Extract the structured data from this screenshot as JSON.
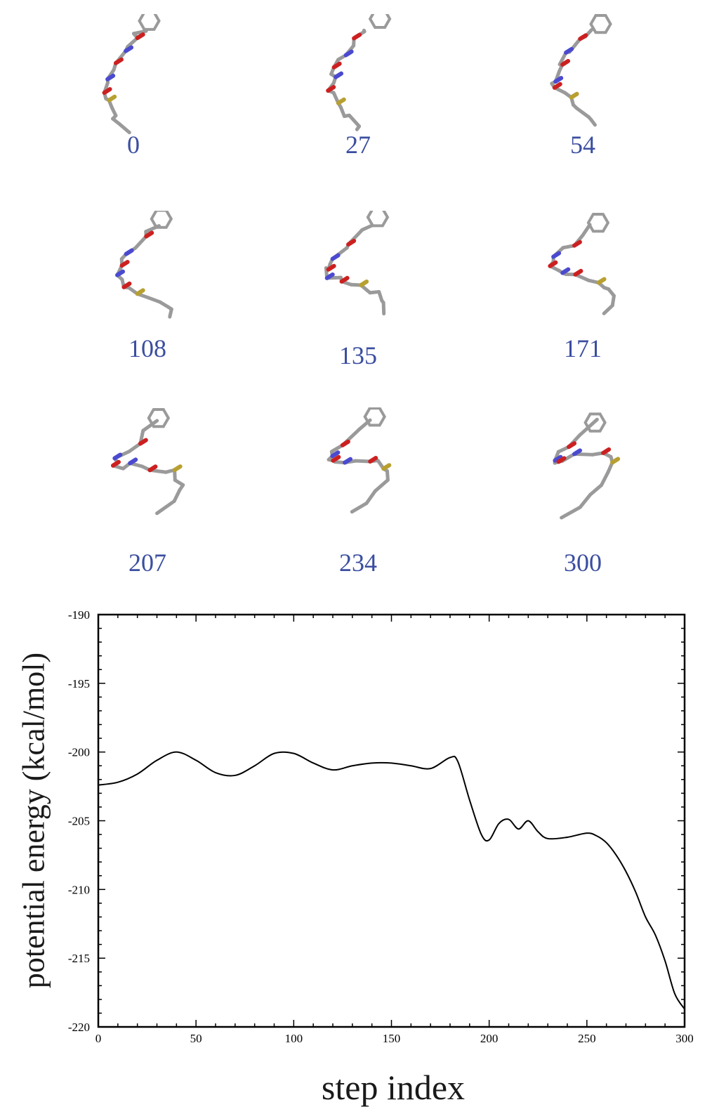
{
  "snapshots": {
    "labels": [
      "0",
      "27",
      "54",
      "108",
      "135",
      "171",
      "207",
      "234",
      "300"
    ],
    "colors": {
      "label": "#3b4ea0",
      "carbon": "#9a9a9a",
      "oxygen": "#cc2020",
      "nitrogen": "#4a4ad0",
      "sulfur": "#b8a030",
      "hydrogen": "#e8e8e8"
    }
  },
  "chart_data": {
    "type": "line",
    "xlabel": "step index",
    "ylabel": "potential energy (kcal/mol)",
    "xlim": [
      0,
      300
    ],
    "ylim": [
      -220,
      -190
    ],
    "x_ticks": [
      0,
      50,
      100,
      150,
      200,
      250,
      300
    ],
    "y_ticks": [
      -220,
      -215,
      -210,
      -205,
      -200,
      -195,
      -190
    ],
    "grid": false,
    "series": [
      {
        "x": [
          0,
          10,
          20,
          30,
          40,
          50,
          60,
          70,
          80,
          90,
          100,
          110,
          120,
          130,
          140,
          150,
          160,
          170,
          180,
          184,
          190,
          196,
          200,
          205,
          210,
          215,
          220,
          225,
          230,
          240,
          250,
          255,
          260,
          265,
          270,
          275,
          280,
          285,
          290,
          295,
          300
        ],
        "y": [
          -202.4,
          -202.2,
          -201.6,
          -200.6,
          -200.0,
          -200.6,
          -201.5,
          -201.7,
          -201.0,
          -200.1,
          -200.1,
          -200.8,
          -201.3,
          -201.0,
          -200.8,
          -200.8,
          -201.0,
          -201.2,
          -200.4,
          -200.7,
          -203.5,
          -206.0,
          -206.4,
          -205.2,
          -204.9,
          -205.6,
          -205.0,
          -205.8,
          -206.3,
          -206.2,
          -205.9,
          -206.1,
          -206.6,
          -207.5,
          -208.7,
          -210.2,
          -212.0,
          -213.3,
          -215.2,
          -217.6,
          -218.7
        ]
      }
    ],
    "colors": {
      "line": "#000000",
      "frame": "#000000"
    }
  }
}
